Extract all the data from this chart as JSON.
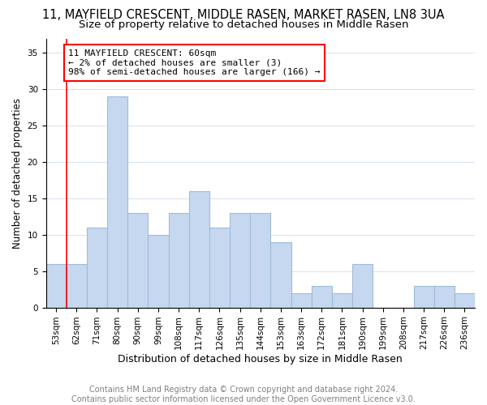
{
  "title": "11, MAYFIELD CRESCENT, MIDDLE RASEN, MARKET RASEN, LN8 3UA",
  "subtitle": "Size of property relative to detached houses in Middle Rasen",
  "xlabel": "Distribution of detached houses by size in Middle Rasen",
  "ylabel": "Number of detached properties",
  "categories": [
    "53sqm",
    "62sqm",
    "71sqm",
    "80sqm",
    "90sqm",
    "99sqm",
    "108sqm",
    "117sqm",
    "126sqm",
    "135sqm",
    "144sqm",
    "153sqm",
    "163sqm",
    "172sqm",
    "181sqm",
    "190sqm",
    "199sqm",
    "208sqm",
    "217sqm",
    "226sqm",
    "236sqm"
  ],
  "values": [
    6,
    6,
    11,
    29,
    13,
    10,
    13,
    16,
    11,
    13,
    13,
    9,
    2,
    3,
    2,
    6,
    0,
    0,
    3,
    3,
    2
  ],
  "bar_color": "#c5d8f0",
  "bar_edgecolor": "#a0bcd8",
  "redline_x": 1,
  "annotation_box_text": "11 MAYFIELD CRESCENT: 60sqm\n← 2% of detached houses are smaller (3)\n98% of semi-detached houses are larger (166) →",
  "ylim": [
    0,
    37
  ],
  "yticks": [
    0,
    5,
    10,
    15,
    20,
    25,
    30,
    35
  ],
  "footer_line1": "Contains HM Land Registry data © Crown copyright and database right 2024.",
  "footer_line2": "Contains public sector information licensed under the Open Government Licence v3.0.",
  "title_fontsize": 10.5,
  "subtitle_fontsize": 9.5,
  "xlabel_fontsize": 9,
  "ylabel_fontsize": 8.5,
  "tick_fontsize": 7.5,
  "footer_fontsize": 7,
  "annotation_fontsize": 8
}
